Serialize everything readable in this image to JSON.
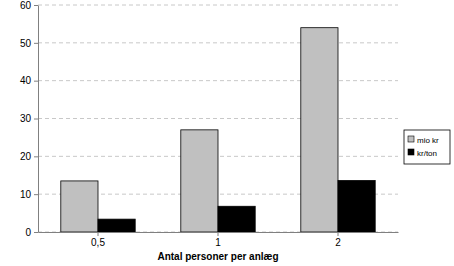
{
  "chart_data": {
    "type": "bar",
    "x_label": "Antal personer per anlæg",
    "categories": [
      "0,5",
      "1",
      "2"
    ],
    "series": [
      {
        "name": "mio kr",
        "color": "#c0c0c0",
        "values": [
          13.5,
          27,
          54
        ]
      },
      {
        "name": "kr/ton",
        "color": "#000000",
        "values": [
          3.4,
          6.8,
          13.6
        ]
      }
    ],
    "ylim": [
      0,
      60
    ],
    "yticks": [
      0,
      10,
      20,
      30,
      40,
      50,
      60
    ],
    "grid": true,
    "legend": "right"
  }
}
